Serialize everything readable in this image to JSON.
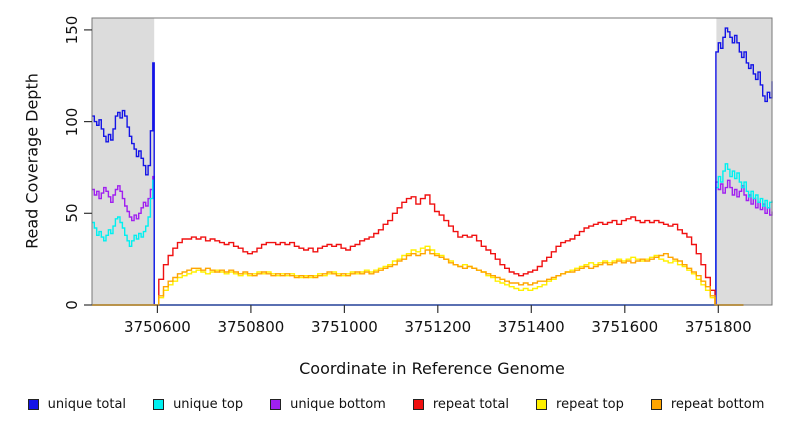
{
  "chart_data": {
    "type": "line",
    "title": "",
    "xlabel": "Coordinate in Reference Genome",
    "ylabel": "Read Coverage Depth",
    "x_range": [
      3750460,
      3751915
    ],
    "y_range": [
      0,
      156.5
    ],
    "x_ticks": [
      3750600,
      3750800,
      3751000,
      3751200,
      3751400,
      3751600,
      3751800
    ],
    "y_ticks": [
      0,
      50,
      100,
      150
    ],
    "grid": false,
    "frame_color": "#777777",
    "tick_color": "#333333",
    "shaded_regions": [
      {
        "name": "left-unique-flank",
        "x_start": 3750460,
        "x_end": 3750593,
        "color": "#DCDCDC"
      },
      {
        "name": "right-unique-flank",
        "x_start": 3751796,
        "x_end": 3751915,
        "color": "#DCDCDC"
      }
    ],
    "legend_position": "bottom-horizontal",
    "legend": [
      {
        "label": "unique total",
        "color": "#1414E6"
      },
      {
        "label": "unique top",
        "color": "#00F0F0"
      },
      {
        "label": "unique bottom",
        "color": "#A020F0"
      },
      {
        "label": "repeat total",
        "color": "#F01010"
      },
      {
        "label": "repeat top",
        "color": "#FFF000"
      },
      {
        "label": "repeat bottom",
        "color": "#FFA500"
      }
    ],
    "series": [
      {
        "name": "unique bottom",
        "color": "#A020F0",
        "segments": [
          {
            "x_start": 3750460,
            "x_step": 5,
            "values": [
              63,
              60,
              62,
              58,
              61,
              64,
              62,
              59,
              56,
              60,
              63,
              65,
              62,
              58,
              54,
              51,
              48,
              46,
              49,
              47,
              50,
              53,
              56,
              54,
              58,
              63,
              70
            ]
          },
          {
            "x_start": 3750593,
            "x_step": 1202,
            "values": [
              0,
              0
            ]
          },
          {
            "x_start": 3751795,
            "x_step": 5,
            "values": [
              67,
              63,
              66,
              61,
              64,
              68,
              64,
              60,
              63,
              59,
              62,
              65,
              60,
              57,
              60,
              55,
              58,
              53,
              56,
              52,
              55,
              50,
              53,
              49,
              51
            ]
          }
        ]
      },
      {
        "name": "unique top",
        "color": "#00F0F0",
        "segments": [
          {
            "x_start": 3750460,
            "x_step": 5,
            "values": [
              45,
              42,
              38,
              40,
              37,
              35,
              38,
              41,
              39,
              43,
              47,
              48,
              45,
              42,
              38,
              35,
              32,
              35,
              38,
              36,
              39,
              37,
              40,
              43,
              48,
              58,
              68
            ]
          },
          {
            "x_start": 3750593,
            "x_step": 1202,
            "values": [
              0,
              0
            ]
          },
          {
            "x_start": 3751795,
            "x_step": 5,
            "values": [
              64,
              70,
              67,
              73,
              77,
              74,
              70,
              73,
              69,
              72,
              67,
              64,
              67,
              62,
              59,
              62,
              58,
              60,
              56,
              58,
              54,
              57,
              53,
              56,
              57
            ]
          }
        ]
      },
      {
        "name": "unique total",
        "color": "#1414E6",
        "segments": [
          {
            "x_start": 3750460,
            "x_step": 5,
            "values": [
              103,
              100,
              98,
              101,
              96,
              92,
              89,
              93,
              90,
              96,
              103,
              105,
              102,
              106,
              103,
              97,
              92,
              88,
              85,
              81,
              84,
              80,
              76,
              71,
              76,
              95,
              132
            ]
          },
          {
            "x_start": 3750593,
            "x_step": 1202,
            "values": [
              0,
              0
            ]
          },
          {
            "x_start": 3751795,
            "x_step": 5,
            "values": [
              138,
              143,
              140,
              146,
              151,
              149,
              146,
              143,
              147,
              143,
              138,
              135,
              138,
              132,
              129,
              131,
              126,
              123,
              127,
              120,
              114,
              111,
              116,
              113,
              122
            ]
          }
        ]
      },
      {
        "name": "repeat total",
        "color": "#F01010",
        "segments": [
          {
            "x_start": 3750460,
            "x_step": 133,
            "values": [
              0,
              0
            ]
          },
          {
            "x_start": 3750593,
            "x_step": 10,
            "values": [
              0,
              14,
              22,
              27,
              31,
              34,
              36,
              36,
              37,
              36,
              37,
              35,
              36,
              35,
              34,
              33,
              34,
              32,
              31,
              29,
              28,
              29,
              31,
              33,
              34,
              34,
              33,
              34,
              33,
              34,
              32,
              31,
              30,
              31,
              29,
              31,
              32,
              33,
              32,
              33,
              31,
              30,
              32,
              33,
              35,
              36,
              37,
              39,
              41,
              44,
              46,
              50,
              53,
              56,
              58,
              59,
              55,
              58,
              60,
              55,
              51,
              49,
              46,
              43,
              40,
              37,
              38,
              37,
              38,
              35,
              32,
              30,
              28,
              25,
              22,
              20,
              18,
              17,
              16,
              17,
              18,
              19,
              21,
              24,
              26,
              29,
              32,
              34,
              35,
              36,
              38,
              40,
              42,
              43,
              44,
              45,
              44,
              45,
              46,
              44,
              46,
              47,
              48,
              46,
              45,
              46,
              45,
              46,
              45,
              44,
              43,
              44,
              41,
              39,
              37,
              33,
              28,
              22,
              15,
              8,
              0
            ]
          },
          {
            "x_start": 3751793,
            "x_step": 61,
            "values": [
              0,
              0
            ]
          }
        ]
      },
      {
        "name": "repeat top",
        "color": "#FFF000",
        "segments": [
          {
            "x_start": 3750460,
            "x_step": 133,
            "values": [
              0,
              0
            ]
          },
          {
            "x_start": 3750593,
            "x_step": 10,
            "values": [
              0,
              4,
              8,
              11,
              13,
              15,
              16,
              17,
              18,
              19,
              18,
              17,
              18,
              19,
              18,
              17,
              18,
              17,
              16,
              17,
              16,
              17,
              18,
              17,
              18,
              17,
              16,
              17,
              16,
              17,
              16,
              15,
              16,
              15,
              16,
              17,
              16,
              17,
              18,
              17,
              16,
              17,
              18,
              17,
              18,
              19,
              18,
              19,
              20,
              21,
              22,
              24,
              25,
              27,
              28,
              30,
              29,
              31,
              32,
              30,
              28,
              27,
              25,
              24,
              22,
              21,
              22,
              21,
              20,
              19,
              18,
              16,
              15,
              13,
              12,
              11,
              10,
              9,
              8,
              9,
              8,
              9,
              10,
              11,
              13,
              14,
              16,
              17,
              18,
              19,
              20,
              21,
              22,
              23,
              22,
              23,
              24,
              23,
              24,
              25,
              24,
              25,
              26,
              25,
              24,
              25,
              26,
              27,
              25,
              24,
              23,
              24,
              22,
              21,
              19,
              17,
              14,
              11,
              8,
              4,
              0
            ]
          },
          {
            "x_start": 3751793,
            "x_step": 61,
            "values": [
              0,
              0
            ]
          }
        ]
      },
      {
        "name": "repeat bottom",
        "color": "#FFA500",
        "segments": [
          {
            "x_start": 3750460,
            "x_step": 133,
            "values": [
              0,
              0
            ]
          },
          {
            "x_start": 3750593,
            "x_step": 10,
            "values": [
              0,
              5,
              10,
              13,
              15,
              17,
              18,
              19,
              20,
              20,
              19,
              20,
              19,
              18,
              19,
              18,
              19,
              18,
              17,
              18,
              17,
              16,
              17,
              18,
              17,
              16,
              17,
              16,
              17,
              16,
              15,
              16,
              15,
              16,
              15,
              16,
              17,
              18,
              17,
              16,
              17,
              16,
              17,
              18,
              17,
              18,
              17,
              18,
              19,
              20,
              21,
              22,
              24,
              25,
              27,
              28,
              27,
              28,
              30,
              28,
              27,
              26,
              25,
              23,
              22,
              21,
              20,
              21,
              20,
              19,
              18,
              17,
              16,
              15,
              14,
              13,
              12,
              12,
              11,
              12,
              11,
              12,
              13,
              13,
              14,
              15,
              16,
              17,
              18,
              18,
              19,
              20,
              21,
              20,
              21,
              22,
              23,
              22,
              23,
              24,
              23,
              24,
              23,
              24,
              25,
              24,
              25,
              26,
              27,
              28,
              26,
              25,
              24,
              22,
              20,
              18,
              16,
              13,
              10,
              5,
              0
            ]
          },
          {
            "x_start": 3751793,
            "x_step": 61,
            "values": [
              0,
              0
            ]
          }
        ]
      }
    ]
  }
}
